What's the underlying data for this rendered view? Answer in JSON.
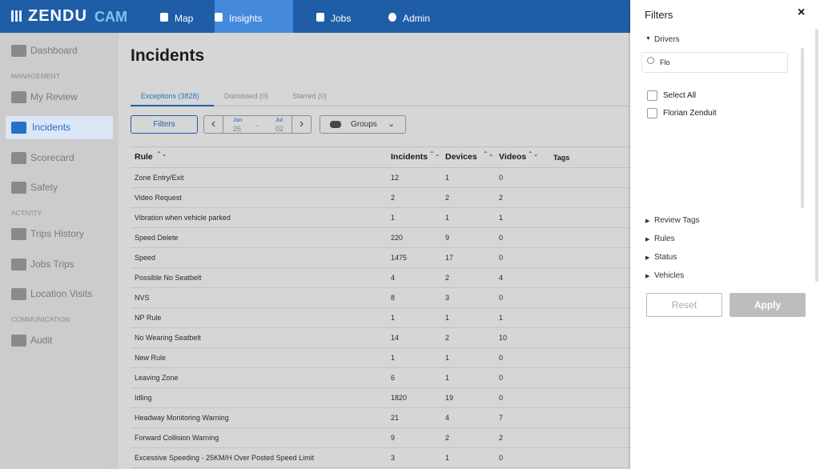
{
  "header": {
    "logo": [
      "ZENDU",
      "CAM"
    ],
    "nav": [
      "Map",
      "Insights",
      "Jobs",
      "Admin"
    ]
  },
  "sidebar": {
    "top": [
      "Dashboard"
    ],
    "sections": [
      {
        "heading": "MANAGEMENT",
        "items": [
          "My Review",
          "Incidents",
          "Scorecard",
          "Safety"
        ]
      },
      {
        "heading": "ACTIVITY",
        "items": [
          "Trips History",
          "Jobs Trips",
          "Location Visits"
        ]
      },
      {
        "heading": "COMMUNICATION",
        "items": [
          "Audit"
        ]
      }
    ]
  },
  "page": {
    "title": "Incidents",
    "tabs": [
      "Exceptions (3828)",
      "Dismissed (0)",
      "Starred (0)"
    ],
    "toolbar": {
      "filters": "Filters",
      "date": {
        "from_month": "Jun",
        "from_day": "26",
        "separator": "-",
        "to_month": "Jul",
        "to_day": "02"
      },
      "groups": "Groups"
    }
  },
  "table": {
    "columns": [
      "Rule",
      "Incidents",
      "Devices",
      "Videos",
      "Tags"
    ],
    "rows": [
      [
        "Zone Entry/Exit",
        12,
        1,
        0
      ],
      [
        "Video Request",
        2,
        2,
        2
      ],
      [
        "Vibration when vehicle parked",
        1,
        1,
        1
      ],
      [
        "Speed Delete",
        220,
        9,
        0
      ],
      [
        "Speed",
        1475,
        17,
        0
      ],
      [
        "Possible No Seatbelt",
        4,
        2,
        4
      ],
      [
        "NVS",
        8,
        3,
        0
      ],
      [
        "NP Rule",
        1,
        1,
        1
      ],
      [
        "No Wearing Seatbelt",
        14,
        2,
        10
      ],
      [
        "New Rule",
        1,
        1,
        0
      ],
      [
        "Leaving Zone",
        6,
        1,
        0
      ],
      [
        "Idling",
        1820,
        19,
        0
      ],
      [
        "Headway Monitoring Warning",
        21,
        4,
        7
      ],
      [
        "Forward Collision Warning",
        9,
        2,
        2
      ],
      [
        "Excessive Speeding - 25KM/H Over Posted Speed Limit",
        3,
        1,
        0
      ]
    ]
  },
  "filters": {
    "title": "Filters",
    "close": "×",
    "drivers": {
      "label": "Drivers",
      "search": "Flo",
      "options": [
        "Select All",
        "Florian Zenduit"
      ]
    },
    "groups": [
      "Review Tags",
      "Rules",
      "Status",
      "Vehicles"
    ],
    "buttons": [
      "Reset",
      "Apply"
    ]
  }
}
